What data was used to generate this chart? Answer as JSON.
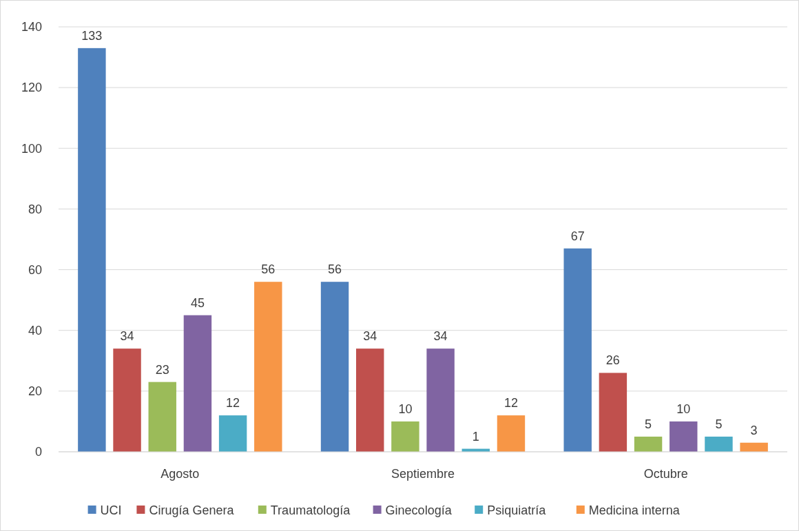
{
  "chart_data": {
    "type": "bar",
    "categories": [
      "Agosto",
      "Septiembre",
      "Octubre"
    ],
    "series": [
      {
        "name": "UCI",
        "color": "#4f81bd",
        "values": [
          133,
          56,
          67
        ]
      },
      {
        "name": "Cirugía Genera",
        "color": "#c0504d",
        "values": [
          34,
          34,
          26
        ]
      },
      {
        "name": "Traumatología",
        "color": "#9bbb59",
        "values": [
          23,
          10,
          5
        ]
      },
      {
        "name": "Ginecología",
        "color": "#8064a2",
        "values": [
          45,
          34,
          10
        ]
      },
      {
        "name": "Psiquiatría",
        "color": "#4bacc6",
        "values": [
          12,
          1,
          5
        ]
      },
      {
        "name": "Medicina interna",
        "color": "#f79646",
        "values": [
          56,
          12,
          3
        ]
      }
    ],
    "ylim": [
      0,
      140
    ],
    "yticks": [
      0,
      20,
      40,
      60,
      80,
      100,
      120,
      140
    ],
    "grid": "y",
    "legend": "bottom",
    "data_labels": true
  }
}
